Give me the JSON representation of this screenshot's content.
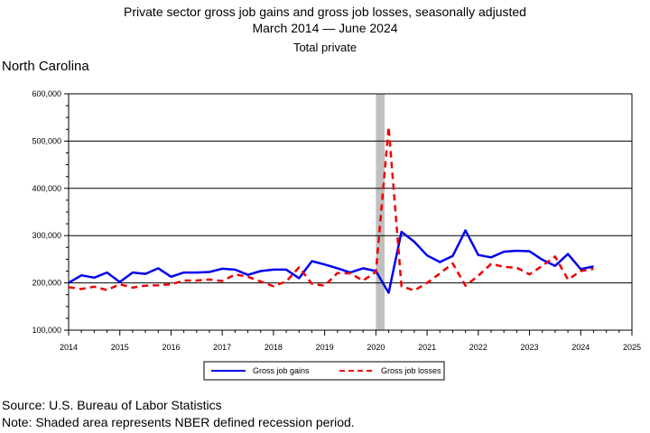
{
  "header": {
    "title_line1": "Private sector gross job gains and gross job losses, seasonally adjusted",
    "title_line2": "March 2014 — June 2024",
    "title_line3": "Total private",
    "region": "North Carolina"
  },
  "footer": {
    "source": "Source: U.S. Bureau of Labor Statistics",
    "note": "Note: Shaded area represents NBER defined recession period."
  },
  "colors": {
    "gains": "#0000ee",
    "losses": "#ee0000",
    "recession": "#c0c0c0"
  },
  "chart_data": {
    "type": "line",
    "title": "Private sector gross job gains and gross job losses, seasonally adjusted",
    "subtitle": "March 2014 — June 2024",
    "xlabel": "",
    "ylabel": "",
    "xlim": [
      2014,
      2025
    ],
    "ylim": [
      100000,
      600000
    ],
    "x_ticks": [
      "2014",
      "2015",
      "2016",
      "2017",
      "2018",
      "2019",
      "2020",
      "2021",
      "2022",
      "2023",
      "2024",
      "2025"
    ],
    "y_ticks": [
      "100,000",
      "200,000",
      "300,000",
      "400,000",
      "500,000",
      "600,000"
    ],
    "grid": "horizontal",
    "legend": "bottom",
    "recession_shading": {
      "start": 2020.0,
      "end": 2020.17
    },
    "x": [
      2014.0,
      2014.25,
      2014.5,
      2014.75,
      2015.0,
      2015.25,
      2015.5,
      2015.75,
      2016.0,
      2016.25,
      2016.5,
      2016.75,
      2017.0,
      2017.25,
      2017.5,
      2017.75,
      2018.0,
      2018.25,
      2018.5,
      2018.75,
      2019.0,
      2019.25,
      2019.5,
      2019.75,
      2020.0,
      2020.25,
      2020.5,
      2020.75,
      2021.0,
      2021.25,
      2021.5,
      2021.75,
      2022.0,
      2022.25,
      2022.5,
      2022.75,
      2023.0,
      2023.25,
      2023.5,
      2023.75,
      2024.0,
      2024.25
    ],
    "series": [
      {
        "name": "Gross job gains",
        "style": "solid",
        "values": [
          200000,
          216000,
          211000,
          222000,
          202000,
          222000,
          219000,
          231000,
          213000,
          222000,
          222000,
          223000,
          230000,
          228000,
          217000,
          225000,
          228000,
          228000,
          210000,
          246000,
          239000,
          231000,
          222000,
          231000,
          225000,
          179000,
          308000,
          287000,
          258000,
          244000,
          257000,
          311000,
          259000,
          254000,
          266000,
          268000,
          267000,
          249000,
          236000,
          261000,
          229000,
          235000
        ]
      },
      {
        "name": "Gross job losses",
        "style": "dashed",
        "values": [
          191000,
          187000,
          192000,
          185000,
          197000,
          190000,
          194000,
          195000,
          197000,
          205000,
          205000,
          207000,
          204000,
          218000,
          213000,
          203000,
          193000,
          203000,
          233000,
          198000,
          194000,
          221000,
          220000,
          205000,
          223000,
          530000,
          193000,
          184000,
          200000,
          220000,
          241000,
          194000,
          215000,
          240000,
          234000,
          232000,
          218000,
          236000,
          256000,
          207000,
          225000,
          230000
        ]
      }
    ]
  }
}
